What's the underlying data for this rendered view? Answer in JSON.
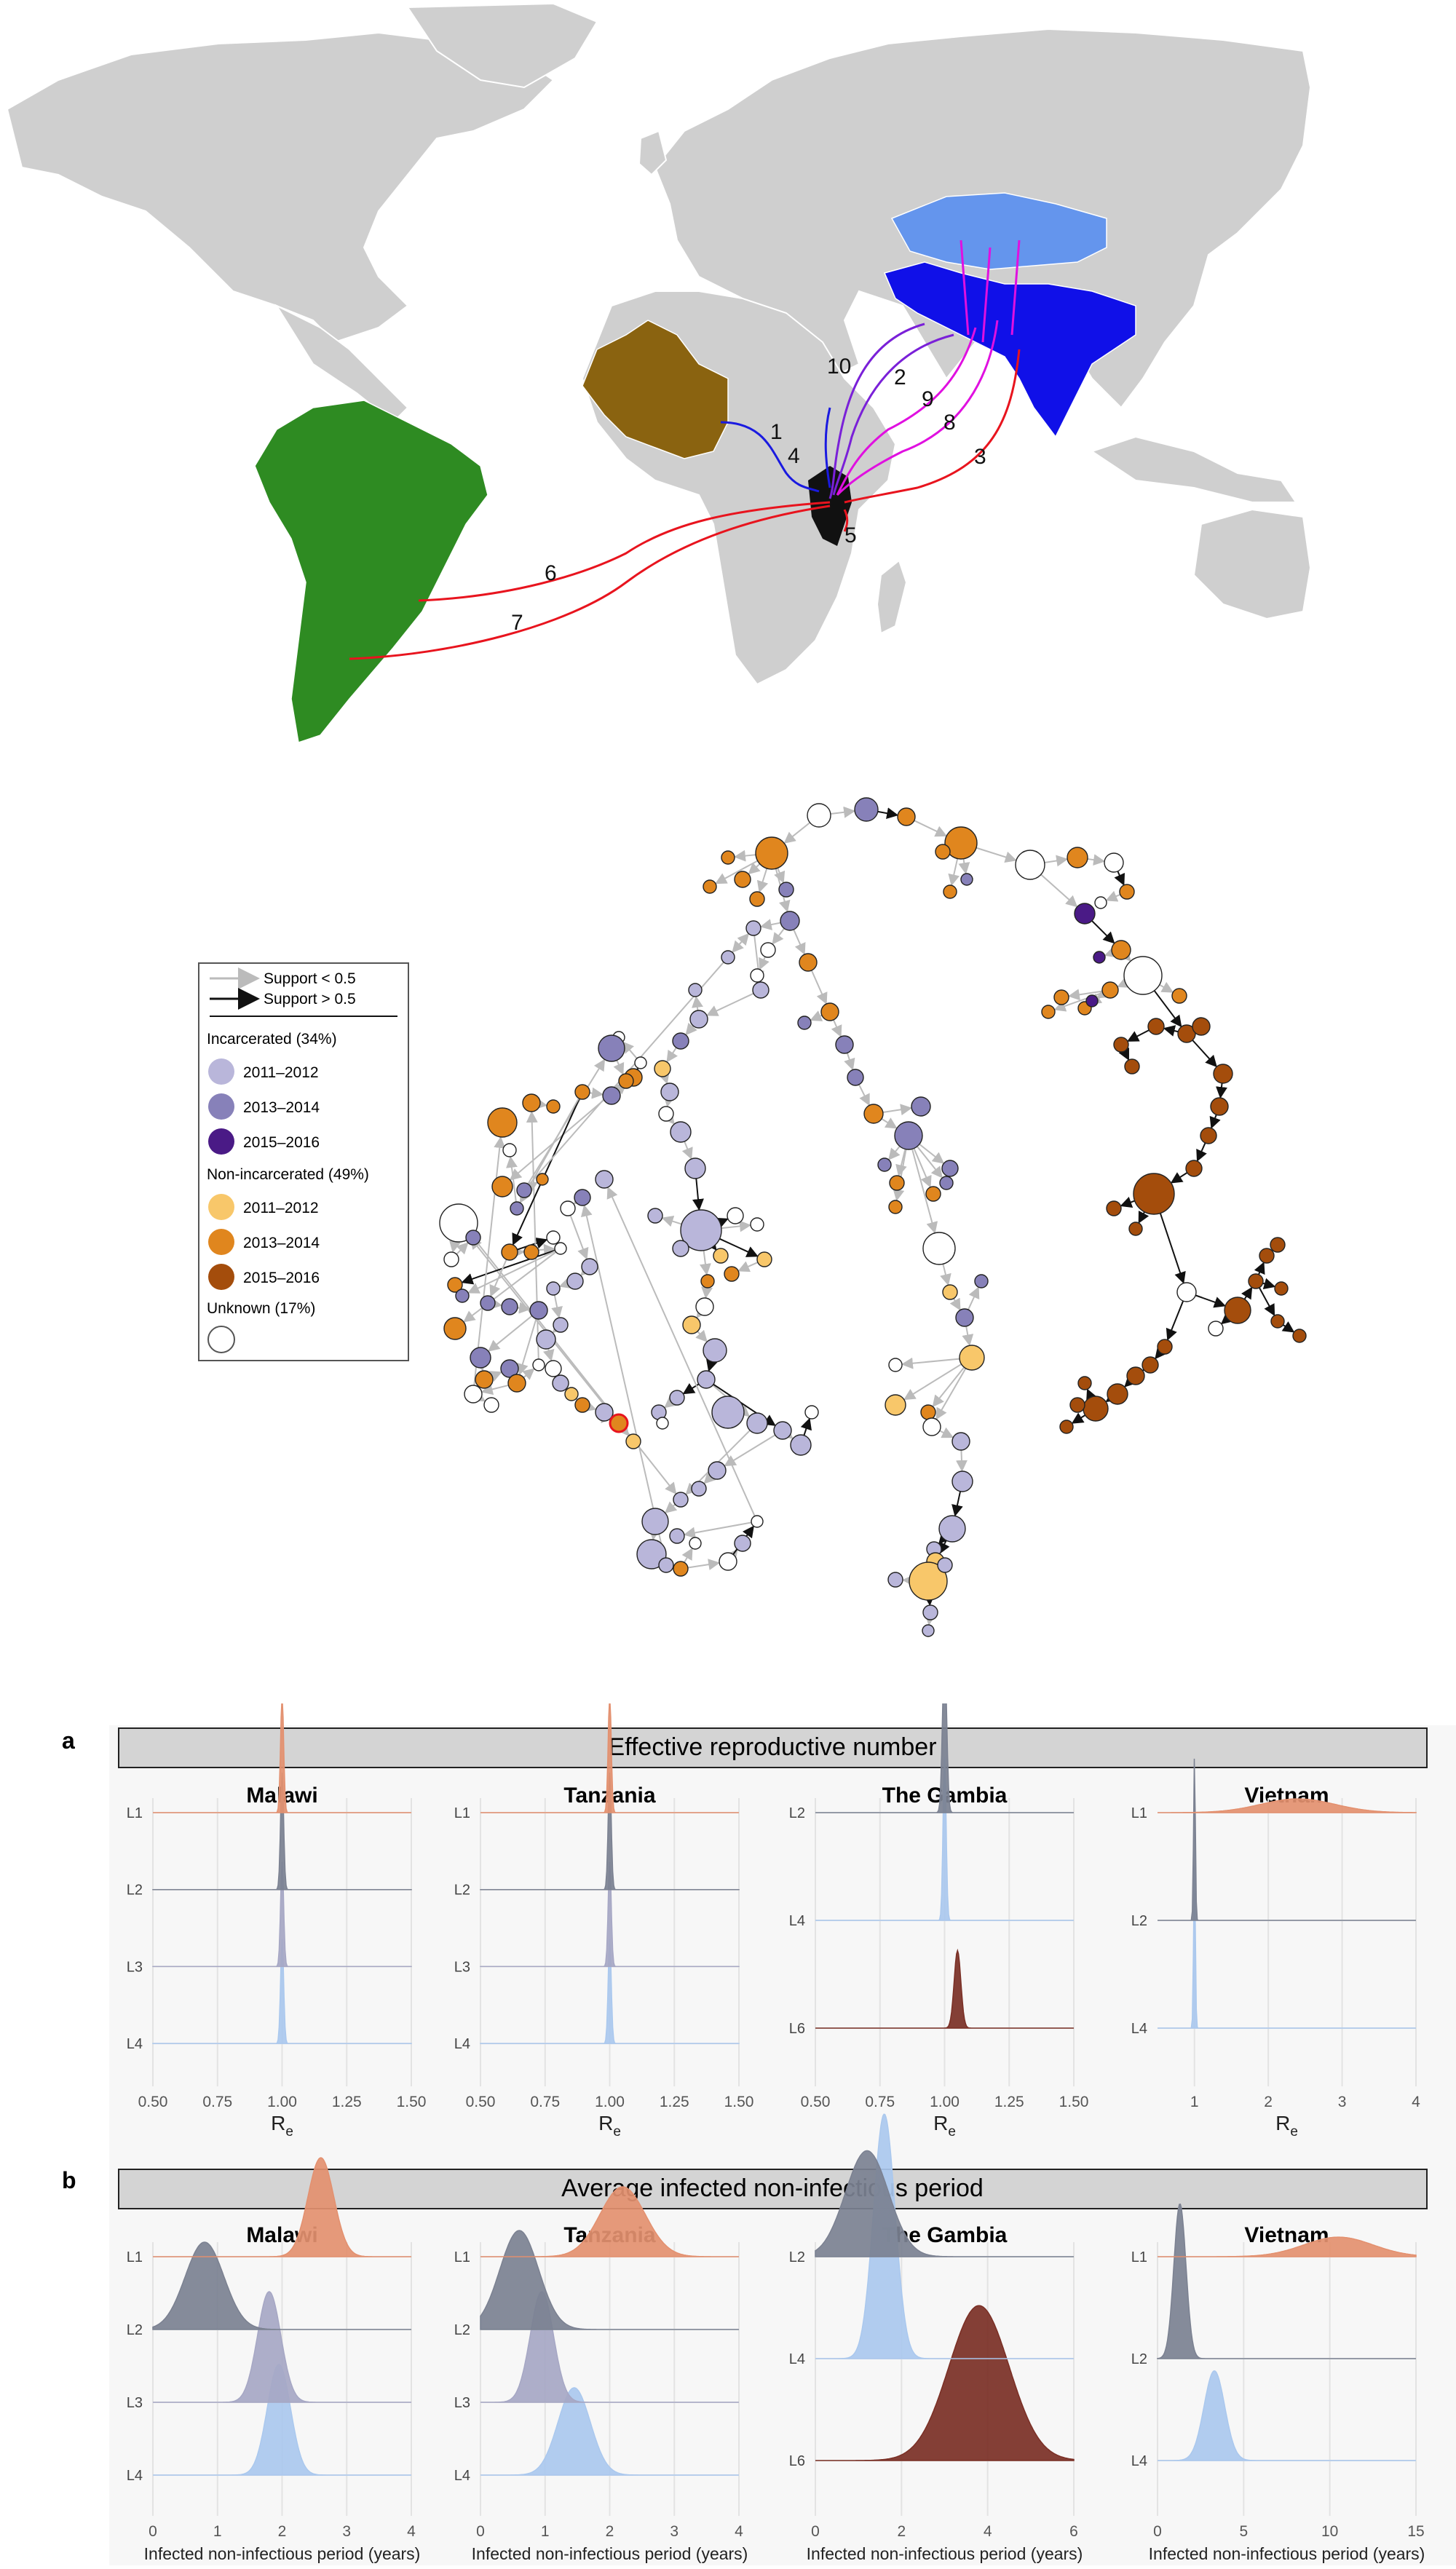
{
  "map": {
    "route_labels": [
      "1",
      "2",
      "3",
      "4",
      "5",
      "6",
      "7",
      "8",
      "9",
      "10"
    ],
    "colors": {
      "land": "#cfcfcf",
      "west_africa": "#8a6310",
      "south_america": "#2e8b22",
      "south_asia": "#1010e8",
      "central_asia": "#6495ed",
      "route_red": "#e8141e",
      "route_blue": "#1a1ae0",
      "route_magenta": "#e010e0",
      "route_purple": "#7a20d8"
    }
  },
  "network": {
    "legend": {
      "support_low": "Support < 0.5",
      "support_high": "Support > 0.5",
      "incarcerated_title": "Incarcerated (34%)",
      "non_incarcerated_title": "Non-incarcerated (49%)",
      "unknown_title": "Unknown (17%)",
      "incarcerated_items": [
        {
          "label": "2011–2012",
          "color": "#b9b6da"
        },
        {
          "label": "2013–2014",
          "color": "#8781b9"
        },
        {
          "label": "2015–2016",
          "color": "#4a1a86"
        }
      ],
      "non_incarcerated_items": [
        {
          "label": "2011–2012",
          "color": "#f8c76a"
        },
        {
          "label": "2013–2014",
          "color": "#e0861e"
        },
        {
          "label": "2015–2016",
          "color": "#a44d0c"
        }
      ],
      "unknown_color": "#ffffff"
    }
  },
  "chart_data": [
    {
      "type": "ridgeline",
      "panel": "a",
      "title": "Effective reproductive number",
      "facets": [
        {
          "name": "Malawi",
          "xlabel": "R",
          "xlabel_sub": "e",
          "xlim": [
            0.5,
            1.5
          ],
          "xticks": [
            "0.50",
            "0.75",
            "1.00",
            "1.25",
            "1.50"
          ],
          "xtick_values": [
            0.5,
            0.75,
            1.0,
            1.25,
            1.5
          ],
          "lineages": [
            "L1",
            "L2",
            "L3",
            "L4"
          ],
          "peaks": [
            {
              "lineage": "L1",
              "mode": 1.0,
              "sd": 0.006,
              "height": 0.95
            },
            {
              "lineage": "L2",
              "mode": 1.0,
              "sd": 0.006,
              "height": 0.95
            },
            {
              "lineage": "L3",
              "mode": 1.0,
              "sd": 0.006,
              "height": 0.85
            },
            {
              "lineage": "L4",
              "mode": 1.0,
              "sd": 0.006,
              "height": 0.85
            }
          ]
        },
        {
          "name": "Tanzania",
          "xlabel": "R",
          "xlabel_sub": "e",
          "xlim": [
            0.5,
            1.5
          ],
          "xticks": [
            "0.50",
            "0.75",
            "1.00",
            "1.25",
            "1.50"
          ],
          "xtick_values": [
            0.5,
            0.75,
            1.0,
            1.25,
            1.5
          ],
          "lineages": [
            "L1",
            "L2",
            "L3",
            "L4"
          ],
          "peaks": [
            {
              "lineage": "L1",
              "mode": 1.0,
              "sd": 0.006,
              "height": 0.95
            },
            {
              "lineage": "L2",
              "mode": 1.0,
              "sd": 0.006,
              "height": 0.95
            },
            {
              "lineage": "L3",
              "mode": 1.0,
              "sd": 0.006,
              "height": 0.85
            },
            {
              "lineage": "L4",
              "mode": 1.0,
              "sd": 0.006,
              "height": 0.85
            }
          ]
        },
        {
          "name": "The Gambia",
          "xlabel": "R",
          "xlabel_sub": "e",
          "xlim": [
            0.5,
            1.5
          ],
          "xticks": [
            "0.50",
            "0.75",
            "1.00",
            "1.25",
            "1.50"
          ],
          "xtick_values": [
            0.5,
            0.75,
            1.0,
            1.25,
            1.5
          ],
          "lineages": [
            "L2",
            "L4",
            "L6"
          ],
          "peaks": [
            {
              "lineage": "L2",
              "mode": 1.0,
              "sd": 0.008,
              "height": 0.95
            },
            {
              "lineage": "L4",
              "mode": 1.0,
              "sd": 0.006,
              "height": 0.95
            },
            {
              "lineage": "L6",
              "mode": 1.05,
              "sd": 0.013,
              "height": 0.45
            }
          ]
        },
        {
          "name": "Vietnam",
          "xlabel": "R",
          "xlabel_sub": "e",
          "xlim": [
            0.5,
            4
          ],
          "xticks": [
            "1",
            "2",
            "3",
            "4"
          ],
          "xtick_values": [
            1,
            2,
            3,
            4
          ],
          "lineages": [
            "L1",
            "L2",
            "L4"
          ],
          "peaks": [
            {
              "lineage": "L1",
              "mode": 2.4,
              "sd": 0.5,
              "height": 0.08
            },
            {
              "lineage": "L2",
              "mode": 1.0,
              "sd": 0.012,
              "height": 0.95
            },
            {
              "lineage": "L4",
              "mode": 1.0,
              "sd": 0.012,
              "height": 0.95
            }
          ]
        }
      ]
    },
    {
      "type": "ridgeline",
      "panel": "b",
      "title": "Average infected non-infectious period",
      "facets": [
        {
          "name": "Malawi",
          "xlabel": "Infected non-infectious period (years)",
          "xlim": [
            0,
            4
          ],
          "xticks": [
            "0",
            "1",
            "2",
            "3",
            "4"
          ],
          "xtick_values": [
            0,
            1,
            2,
            3,
            4
          ],
          "lineages": [
            "L1",
            "L2",
            "L3",
            "L4"
          ],
          "peaks": [
            {
              "lineage": "L1",
              "mode": 2.6,
              "sd": 0.2,
              "height": 0.85
            },
            {
              "lineage": "L2",
              "mode": 0.8,
              "sd": 0.3,
              "height": 0.75
            },
            {
              "lineage": "L3",
              "mode": 1.8,
              "sd": 0.18,
              "height": 0.95
            },
            {
              "lineage": "L4",
              "mode": 1.95,
              "sd": 0.18,
              "height": 0.95
            }
          ]
        },
        {
          "name": "Tanzania",
          "xlabel": "Infected non-infectious period (years)",
          "xlim": [
            0,
            4
          ],
          "xticks": [
            "0",
            "1",
            "2",
            "3",
            "4"
          ],
          "xtick_values": [
            0,
            1,
            2,
            3,
            4
          ],
          "lineages": [
            "L1",
            "L2",
            "L3",
            "L4"
          ],
          "peaks": [
            {
              "lineage": "L1",
              "mode": 2.2,
              "sd": 0.35,
              "height": 0.6
            },
            {
              "lineage": "L2",
              "mode": 0.6,
              "sd": 0.3,
              "height": 0.85
            },
            {
              "lineage": "L3",
              "mode": 0.95,
              "sd": 0.18,
              "height": 0.95
            },
            {
              "lineage": "L4",
              "mode": 1.45,
              "sd": 0.25,
              "height": 0.75
            }
          ]
        },
        {
          "name": "The Gambia",
          "xlabel": "Infected non-infectious period (years)",
          "xlim": [
            0,
            6
          ],
          "xticks": [
            "0",
            "2",
            "4",
            "6"
          ],
          "xtick_values": [
            0,
            2,
            4,
            6
          ],
          "lineages": [
            "L2",
            "L4",
            "L6"
          ],
          "peaks": [
            {
              "lineage": "L2",
              "mode": 1.2,
              "sd": 0.5,
              "height": 0.65
            },
            {
              "lineage": "L4",
              "mode": 1.6,
              "sd": 0.25,
              "height": 1.5
            },
            {
              "lineage": "L6",
              "mode": 3.8,
              "sd": 0.7,
              "height": 0.95
            }
          ]
        },
        {
          "name": "Vietnam",
          "xlabel": "Infected non-infectious period (years)",
          "xlim": [
            0,
            15
          ],
          "xticks": [
            "0",
            "5",
            "10",
            "15"
          ],
          "xtick_values": [
            0,
            5,
            10,
            15
          ],
          "lineages": [
            "L1",
            "L2",
            "L4"
          ],
          "peaks": [
            {
              "lineage": "L1",
              "mode": 10.5,
              "sd": 2.0,
              "height": 0.12
            },
            {
              "lineage": "L2",
              "mode": 1.3,
              "sd": 0.35,
              "height": 0.95
            },
            {
              "lineage": "L4",
              "mode": 3.3,
              "sd": 0.6,
              "height": 0.55
            }
          ]
        }
      ]
    }
  ],
  "lineage_colors": {
    "L1": "#e3906f",
    "L2": "#7b8191",
    "L3": "#a6a7c4",
    "L4": "#aac8ee",
    "L6": "#7a2f25"
  },
  "panel_letters": [
    "a",
    "b"
  ]
}
